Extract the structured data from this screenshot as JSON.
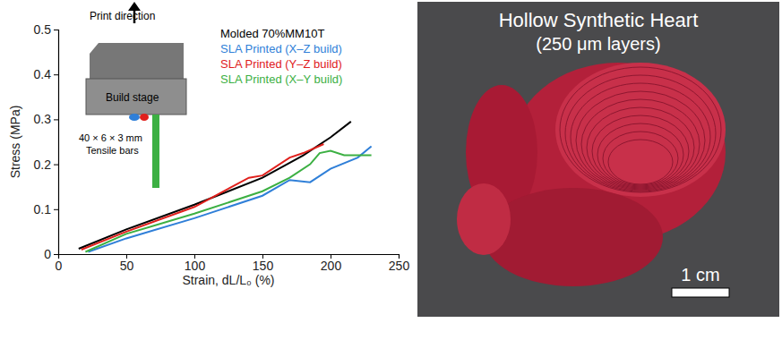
{
  "chart_data": {
    "type": "line",
    "x_label": "Strain, dL/L₀ (%)",
    "y_label": "Stress (MPa)",
    "xlim": [
      0,
      250
    ],
    "xticks": [
      0,
      50,
      100,
      150,
      200,
      250
    ],
    "ylim": [
      0,
      0.5
    ],
    "yticks": [
      0,
      0.1,
      0.2,
      0.3,
      0.4,
      0.5
    ],
    "legend": "upper right",
    "annotations": [
      "Print direction",
      "Build stage",
      "40 × 6 × 3 mm",
      "Tensile bars"
    ],
    "series": [
      {
        "name": "Molded 70%MM10T",
        "color": "#000000",
        "x": [
          15,
          50,
          100,
          150,
          180,
          200,
          215
        ],
        "values": [
          0.012,
          0.055,
          0.11,
          0.17,
          0.22,
          0.26,
          0.295
        ]
      },
      {
        "name": "SLA Printed (X–Z build)",
        "color": "#2f7fd8",
        "x": [
          22,
          50,
          100,
          150,
          170,
          185,
          200,
          220,
          230
        ],
        "values": [
          0.005,
          0.035,
          0.08,
          0.13,
          0.165,
          0.16,
          0.19,
          0.215,
          0.24
        ]
      },
      {
        "name": "SLA Printed (Y–Z build)",
        "color": "#e0201c",
        "x": [
          17,
          50,
          100,
          140,
          150,
          170,
          180,
          195
        ],
        "values": [
          0.01,
          0.05,
          0.105,
          0.17,
          0.175,
          0.215,
          0.225,
          0.245
        ]
      },
      {
        "name": "SLA Printed (X–Y build)",
        "color": "#3cb043",
        "x": [
          20,
          50,
          100,
          150,
          170,
          185,
          192,
          200,
          210,
          230
        ],
        "values": [
          0.005,
          0.045,
          0.09,
          0.14,
          0.17,
          0.2,
          0.225,
          0.23,
          0.22,
          0.22
        ]
      }
    ]
  },
  "photo": {
    "title": "Hollow Synthetic Heart",
    "subtitle": "(250 μm layers)",
    "scale_bar": "1 cm"
  }
}
